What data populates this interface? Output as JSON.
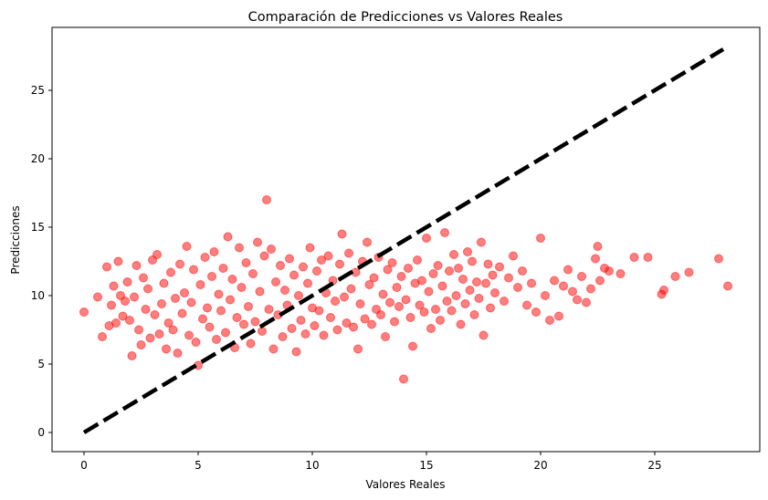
{
  "chart_data": {
    "type": "scatter",
    "title": "Comparación de Predicciones vs Valores Reales",
    "xlabel": "Valores Reales",
    "ylabel": "Predicciones",
    "xlim": [
      -1.4,
      29.6
    ],
    "ylim": [
      -1.4,
      29.6
    ],
    "xticks": [
      0,
      5,
      10,
      15,
      20,
      25
    ],
    "yticks": [
      0,
      5,
      10,
      15,
      20,
      25
    ],
    "grid": false,
    "point_color": "#ff0000",
    "point_alpha": 0.5,
    "reference_line": {
      "style": "dashed",
      "color": "#000000",
      "from": [
        0,
        0
      ],
      "to": [
        28,
        28
      ]
    },
    "series": [
      {
        "points": [
          [
            0.0,
            8.8
          ],
          [
            0.6,
            9.9
          ],
          [
            0.8,
            7.0
          ],
          [
            1.0,
            12.1
          ],
          [
            1.1,
            7.8
          ],
          [
            1.2,
            9.3
          ],
          [
            1.3,
            10.7
          ],
          [
            1.4,
            8.0
          ],
          [
            1.5,
            12.5
          ],
          [
            1.6,
            10.0
          ],
          [
            1.7,
            8.5
          ],
          [
            1.8,
            9.6
          ],
          [
            1.9,
            11.0
          ],
          [
            2.0,
            8.2
          ],
          [
            2.1,
            5.6
          ],
          [
            2.2,
            9.9
          ],
          [
            2.3,
            12.2
          ],
          [
            2.4,
            7.5
          ],
          [
            2.5,
            6.4
          ],
          [
            2.6,
            11.3
          ],
          [
            2.7,
            9.0
          ],
          [
            2.8,
            10.5
          ],
          [
            2.9,
            6.9
          ],
          [
            3.0,
            12.6
          ],
          [
            3.1,
            8.6
          ],
          [
            3.2,
            13.0
          ],
          [
            3.3,
            7.2
          ],
          [
            3.4,
            9.4
          ],
          [
            3.5,
            10.9
          ],
          [
            3.6,
            6.1
          ],
          [
            3.7,
            8.0
          ],
          [
            3.8,
            11.7
          ],
          [
            3.9,
            7.5
          ],
          [
            4.0,
            9.8
          ],
          [
            4.1,
            5.8
          ],
          [
            4.2,
            12.3
          ],
          [
            4.3,
            8.7
          ],
          [
            4.4,
            10.2
          ],
          [
            4.5,
            13.6
          ],
          [
            4.6,
            7.1
          ],
          [
            4.7,
            9.5
          ],
          [
            4.8,
            11.9
          ],
          [
            4.9,
            6.6
          ],
          [
            5.0,
            4.9
          ],
          [
            5.1,
            10.8
          ],
          [
            5.2,
            8.3
          ],
          [
            5.3,
            12.8
          ],
          [
            5.4,
            9.1
          ],
          [
            5.5,
            7.7
          ],
          [
            5.6,
            11.4
          ],
          [
            5.7,
            13.2
          ],
          [
            5.8,
            6.8
          ],
          [
            5.9,
            10.1
          ],
          [
            6.0,
            8.9
          ],
          [
            6.1,
            12.0
          ],
          [
            6.2,
            7.3
          ],
          [
            6.3,
            14.3
          ],
          [
            6.4,
            9.7
          ],
          [
            6.5,
            11.2
          ],
          [
            6.6,
            6.2
          ],
          [
            6.7,
            8.4
          ],
          [
            6.8,
            13.5
          ],
          [
            6.9,
            10.6
          ],
          [
            7.0,
            7.9
          ],
          [
            7.1,
            12.4
          ],
          [
            7.2,
            9.2
          ],
          [
            7.3,
            6.5
          ],
          [
            7.4,
            11.6
          ],
          [
            7.5,
            8.1
          ],
          [
            7.6,
            13.9
          ],
          [
            7.7,
            10.3
          ],
          [
            7.8,
            7.4
          ],
          [
            7.9,
            12.9
          ],
          [
            8.0,
            17.0
          ],
          [
            8.1,
            9.0
          ],
          [
            8.2,
            13.4
          ],
          [
            8.3,
            6.1
          ],
          [
            8.4,
            11.0
          ],
          [
            8.5,
            8.6
          ],
          [
            8.6,
            12.2
          ],
          [
            8.7,
            7.0
          ],
          [
            8.8,
            10.4
          ],
          [
            8.9,
            9.3
          ],
          [
            9.0,
            12.7
          ],
          [
            9.1,
            7.6
          ],
          [
            9.2,
            11.5
          ],
          [
            9.3,
            5.9
          ],
          [
            9.4,
            10.0
          ],
          [
            9.5,
            8.2
          ],
          [
            9.6,
            12.1
          ],
          [
            9.7,
            7.2
          ],
          [
            9.8,
            10.9
          ],
          [
            9.9,
            13.5
          ],
          [
            10.0,
            9.1
          ],
          [
            10.1,
            7.8
          ],
          [
            10.2,
            11.8
          ],
          [
            10.3,
            8.9
          ],
          [
            10.4,
            12.6
          ],
          [
            10.5,
            7.1
          ],
          [
            10.6,
            10.2
          ],
          [
            10.7,
            12.9
          ],
          [
            10.8,
            8.4
          ],
          [
            10.9,
            11.1
          ],
          [
            11.0,
            9.6
          ],
          [
            11.1,
            7.5
          ],
          [
            11.2,
            12.3
          ],
          [
            11.3,
            14.5
          ],
          [
            11.4,
            9.9
          ],
          [
            11.5,
            8.0
          ],
          [
            11.6,
            13.1
          ],
          [
            11.7,
            10.5
          ],
          [
            11.8,
            7.7
          ],
          [
            11.9,
            11.7
          ],
          [
            12.0,
            6.1
          ],
          [
            12.1,
            9.4
          ],
          [
            12.2,
            12.5
          ],
          [
            12.3,
            8.3
          ],
          [
            12.4,
            13.9
          ],
          [
            12.5,
            10.8
          ],
          [
            12.6,
            7.9
          ],
          [
            12.7,
            11.3
          ],
          [
            12.8,
            9.0
          ],
          [
            12.9,
            12.8
          ],
          [
            13.0,
            8.6
          ],
          [
            13.1,
            10.1
          ],
          [
            13.2,
            7.0
          ],
          [
            13.3,
            11.9
          ],
          [
            13.4,
            9.5
          ],
          [
            13.5,
            12.4
          ],
          [
            13.6,
            8.1
          ],
          [
            13.7,
            10.6
          ],
          [
            13.8,
            9.2
          ],
          [
            13.9,
            11.4
          ],
          [
            14.0,
            3.9
          ],
          [
            14.1,
            9.7
          ],
          [
            14.2,
            12.0
          ],
          [
            14.3,
            8.4
          ],
          [
            14.4,
            6.3
          ],
          [
            14.5,
            10.9
          ],
          [
            14.6,
            12.6
          ],
          [
            14.7,
            9.3
          ],
          [
            14.8,
            11.1
          ],
          [
            14.9,
            8.8
          ],
          [
            15.0,
            14.2
          ],
          [
            15.1,
            10.3
          ],
          [
            15.2,
            7.6
          ],
          [
            15.3,
            11.6
          ],
          [
            15.4,
            9.0
          ],
          [
            15.5,
            12.2
          ],
          [
            15.6,
            8.2
          ],
          [
            15.7,
            10.7
          ],
          [
            15.8,
            14.6
          ],
          [
            15.9,
            9.6
          ],
          [
            16.0,
            11.8
          ],
          [
            16.1,
            8.9
          ],
          [
            16.2,
            13.0
          ],
          [
            16.3,
            10.0
          ],
          [
            16.4,
            12.0
          ],
          [
            16.5,
            7.9
          ],
          [
            16.6,
            11.2
          ],
          [
            16.7,
            9.4
          ],
          [
            16.8,
            13.2
          ],
          [
            16.9,
            10.4
          ],
          [
            17.0,
            12.5
          ],
          [
            17.1,
            8.6
          ],
          [
            17.2,
            11.0
          ],
          [
            17.3,
            9.8
          ],
          [
            17.4,
            13.9
          ],
          [
            17.5,
            7.1
          ],
          [
            17.6,
            10.9
          ],
          [
            17.7,
            12.3
          ],
          [
            17.8,
            9.1
          ],
          [
            17.9,
            11.5
          ],
          [
            18.0,
            10.2
          ],
          [
            18.2,
            12.1
          ],
          [
            18.4,
            9.6
          ],
          [
            18.6,
            11.3
          ],
          [
            18.8,
            12.9
          ],
          [
            19.0,
            10.6
          ],
          [
            19.2,
            11.8
          ],
          [
            19.4,
            9.3
          ],
          [
            19.6,
            10.9
          ],
          [
            19.8,
            8.8
          ],
          [
            20.0,
            14.2
          ],
          [
            20.2,
            10.0
          ],
          [
            20.4,
            8.2
          ],
          [
            20.6,
            11.1
          ],
          [
            20.8,
            8.5
          ],
          [
            21.0,
            10.7
          ],
          [
            21.2,
            11.9
          ],
          [
            21.4,
            10.3
          ],
          [
            21.6,
            9.7
          ],
          [
            21.8,
            11.4
          ],
          [
            22.0,
            9.5
          ],
          [
            22.2,
            10.5
          ],
          [
            22.4,
            12.7
          ],
          [
            22.5,
            13.6
          ],
          [
            22.6,
            11.1
          ],
          [
            22.8,
            12.0
          ],
          [
            23.0,
            11.8
          ],
          [
            23.5,
            11.6
          ],
          [
            24.1,
            12.8
          ],
          [
            24.7,
            12.8
          ],
          [
            25.3,
            10.1
          ],
          [
            25.4,
            10.4
          ],
          [
            25.9,
            11.4
          ],
          [
            26.5,
            11.7
          ],
          [
            27.8,
            12.7
          ],
          [
            28.2,
            10.7
          ]
        ]
      }
    ]
  }
}
